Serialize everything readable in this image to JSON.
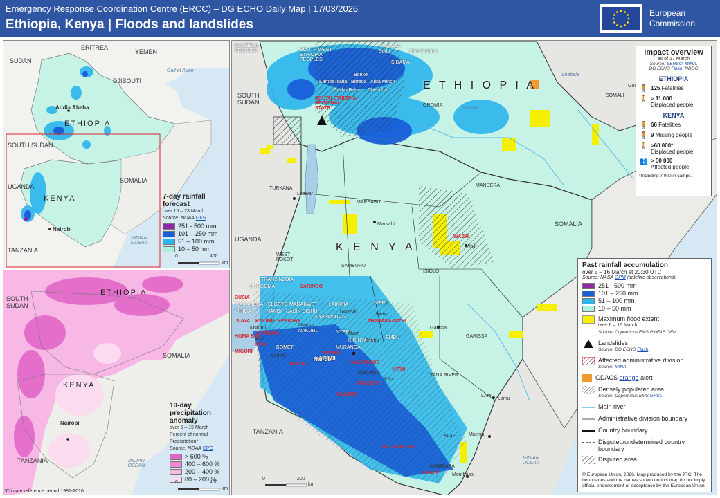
{
  "header": {
    "supertitle": "Emergency Response Coordination Centre (ERCC) – DG ECHO Daily Map | 17/03/2026",
    "title": "Ethiopia, Kenya | Floods and landslides",
    "logo_line1": "European",
    "logo_line2": "Commission"
  },
  "inset_top": {
    "countries": [
      "ERITREA",
      "YEMEN",
      "SUDAN",
      "DJIBOUTI",
      "ETHIOPIA",
      "SOUTH SUDAN",
      "SOMALIA",
      "UGANDA",
      "KENYA",
      "TANZANIA"
    ],
    "cities": [
      "Addis Abeba",
      "Nairobi"
    ],
    "waters": [
      "Gulf of Aden",
      "INDIAN OCEAN"
    ],
    "legend": {
      "title1": "7-day rainfall",
      "title2": "forecast",
      "sub": "over 16 – 23 March",
      "src": "Source: NOAA",
      "src_link": "GFS",
      "rows": [
        {
          "label": "251 - 500 mm",
          "color": "#8e2aa8"
        },
        {
          "label": "101 – 250 mm",
          "color": "#1a5fd8"
        },
        {
          "label": "51 – 100 mm",
          "color": "#2bb6ec"
        },
        {
          "label": "10 – 50 mm",
          "color": "#aef0e0"
        }
      ]
    },
    "scale": {
      "zero": "0",
      "max": "400",
      "unit": "km"
    }
  },
  "inset_bottom": {
    "countries": [
      "SOUTH SUDAN",
      "ETHIOPIA",
      "SOMALIA",
      "KENYA",
      "TANZANIA"
    ],
    "cities": [
      "Nairobi"
    ],
    "waters": [
      "INDIAN OCEAN"
    ],
    "legend": {
      "title1": "10-day",
      "title2": "precipitation",
      "title3": "anomaly",
      "sub": "over 6 – 15 March",
      "sub2": "Percent of normal",
      "sub3": "Precipitation*",
      "src": "Source: NOAA",
      "src_link": "CPC",
      "rows": [
        {
          "label": "> 600 %",
          "color": "#e268c8"
        },
        {
          "label": "400 – 600 %",
          "color": "#f08ad6"
        },
        {
          "label": "200 – 400 %",
          "color": "#f7b8e6"
        },
        {
          "label": "80 – 200 %",
          "color": "#fbdcef"
        }
      ]
    },
    "scale": {
      "zero": "0",
      "max": "400",
      "unit": "km"
    },
    "footnote": "*Climate reference period 1981-2010"
  },
  "main_map": {
    "country_ethiopia": "E T H I O P I A",
    "country_kenya": "K E N Y A",
    "neighbours": [
      "SOUTH SUDAN",
      "SOMALIA",
      "UGANDA",
      "TANZANIA"
    ],
    "water": "INDIAN OCEAN",
    "eth_regions": [
      "GAMBELA PEOPLES",
      "SOUTH WEST ETHIOPIA PEOPLES",
      "SIDAMA",
      "OROMIA",
      "SOUTH ETHIOPIA REGIONAL STATE",
      "SOMALI"
    ],
    "eth_places": [
      "Hawassa",
      "Sodo",
      "Shashamane",
      "Bonke",
      "Arba Minch",
      "Kamba",
      "Tsaita",
      "Boreda",
      "Gacho Baba",
      "Chencha",
      "Genale",
      "Shebele",
      "Gode"
    ],
    "kenya_regions": [
      "TURKANA",
      "MARSABIT",
      "MANDERA",
      "WAJIR",
      "ISIOLO",
      "GARISSA",
      "TANA RIVER",
      "LAMU",
      "KILIFI",
      "MOMBASA",
      "KWALE",
      "TAITA TAVETA",
      "SAMBURU",
      "WEST POKOT",
      "LAIKIPIA",
      "MERU",
      "NYANDARUA",
      "NYERI",
      "EMBU",
      "KIRINYAGA",
      "MURANGA",
      "KIAMBU",
      "NAIROBI",
      "MACHAKOS",
      "MAKUENI",
      "KITUI",
      "KAJIADO",
      "NAROK",
      "BOMET",
      "KERICHO",
      "KISUMU",
      "SIAYA",
      "BUSIA",
      "KAKAMEGA",
      "VIHIGA",
      "MIGORI",
      "HOMA BAY",
      "NYAMIRA",
      "KISII",
      "BUNGOMA",
      "TRANS NZOIA",
      "BARINGO",
      "ELGEYO-MARAKWET",
      "NANDI",
      "UASIN GISHU",
      "NAKURU",
      "THARAKA-NITHI"
    ],
    "kenya_red": [
      "BARINGO",
      "BUSIA",
      "SIAYA",
      "KISUMU",
      "KERICHO",
      "HOMA BAY",
      "MIGORI",
      "KISII",
      "NYAMIRA",
      "NAROK",
      "KIAMBU",
      "NAIROBI",
      "MACHAKOS",
      "MAKUENI",
      "KITUI",
      "KAJIADO",
      "TAITA TAVETA",
      "KWALE",
      "WAJIR",
      "THARAKA-NITHI",
      "EMBU",
      "KIRINYAGA",
      "MURANGA",
      "MERU",
      "LAIKIPIA",
      "NYERI",
      "NYANDARUA"
    ],
    "cities": [
      "Lodwar",
      "Marsabit",
      "Wajir",
      "Garissa",
      "Nairobi",
      "Machakos",
      "Nakuru",
      "Kisumu",
      "Kisii",
      "Malindi",
      "Mombasa",
      "Lamu",
      "Embu",
      "Nyeri",
      "Meru",
      "Nanyuki",
      "Kitui",
      "Bomet"
    ],
    "scale": {
      "zero": "0",
      "max": "200",
      "unit": "km"
    }
  },
  "impact": {
    "title": "Impact overview",
    "asof": "as of 17 March",
    "src_prefix": "Source:",
    "src_links": [
      "SERSO",
      "MINA"
    ],
    "src_line2_prefix": "DG ECHO",
    "src_line2_link": "Flash",
    "src_line2_suffix": ", NDOC",
    "ethiopia": {
      "name": "ETHIOPIA",
      "fatalities_value": "125",
      "fatalities_label": "Fatalities",
      "displaced_value": "> 11 000",
      "displaced_label": "Displaced people"
    },
    "kenya": {
      "name": "KENYA",
      "fatalities_value": "66",
      "fatalities_label": "Fatalities",
      "missing_value": "9",
      "missing_label": "Missing people",
      "displaced_value": ">60 000*",
      "displaced_label": "Displaced people",
      "affected_value": "> 50 000",
      "affected_label": "Affected people"
    },
    "note": "*Including 7 000 in camps."
  },
  "legend": {
    "title": "Past rainfall accumulation",
    "sub": "over 5 – 16 March at 20:30 UTC",
    "src": "Source: NASA",
    "src_link": "GPM",
    "src_suffix": "(satellite observations)",
    "rows": [
      {
        "label": "251 - 500 mm",
        "color": "#8e2aa8"
      },
      {
        "label": "101 – 250 mm",
        "color": "#1a5fd8"
      },
      {
        "label": "51 – 100 mm",
        "color": "#2bb6ec"
      },
      {
        "label": "10 – 50 mm",
        "color": "#aef0e0"
      }
    ],
    "flood": {
      "label": "Maximum flood extent",
      "sub": "over 6 – 16 March",
      "src": "Source: Copernicus EMS GloFAS GFM",
      "color": "#f5ef00"
    },
    "landslides": {
      "label": "Landslides",
      "src_prefix": "Source: DG ECHO",
      "src_link": "Flash"
    },
    "affected": {
      "label": "Affected administrative division",
      "src_prefix": "Source:",
      "src_link": "MINA"
    },
    "gdacs": {
      "label_prefix": "GDACS",
      "label_link": "orange",
      "label_suffix": "alert",
      "color": "#f29a2e"
    },
    "dense": {
      "label": "Densely populated area",
      "src_prefix": "Source: Copernicus EMS",
      "src_link": "GHSL"
    },
    "river": "Main river",
    "admin": "Administrative division  boundary",
    "country": "Country boundary",
    "disputed_line": "Disputed/undetermined country boundary",
    "disputed_area": "Disputed area",
    "footer": "© European Union, 2026. Map produced by the JRC. The boundaries and the names shown on this map do not imply official endorsement or acceptance by the European Union."
  }
}
